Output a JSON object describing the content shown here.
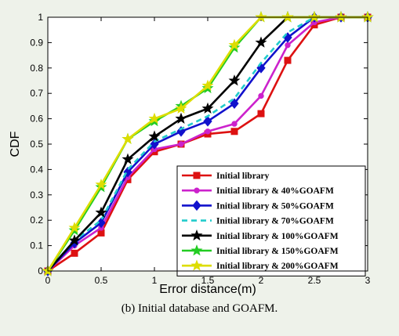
{
  "caption": "(b) Initial database and GOAFM.",
  "chart_data": {
    "type": "line",
    "xlabel": "Error distance(m)",
    "ylabel": "CDF",
    "xlim": [
      0,
      3
    ],
    "ylim": [
      0,
      1
    ],
    "x_ticks": [
      "0",
      "0.5",
      "1",
      "1.5",
      "2",
      "2.5",
      "3"
    ],
    "y_ticks": [
      "0",
      "0.1",
      "0.2",
      "0.3",
      "0.4",
      "0.5",
      "0.6",
      "0.7",
      "0.8",
      "0.9",
      "1"
    ],
    "grid": false,
    "legend_position": "bottom-right",
    "x": [
      0,
      0.25,
      0.5,
      0.75,
      1.0,
      1.25,
      1.5,
      1.75,
      2.0,
      2.25,
      2.5,
      2.75,
      3.0
    ],
    "series": [
      {
        "name": "Initial library",
        "color": "#dd1111",
        "marker": "square",
        "line_style": "solid",
        "values": [
          0,
          0.07,
          0.15,
          0.36,
          0.47,
          0.5,
          0.54,
          0.55,
          0.62,
          0.83,
          0.97,
          1.0,
          1.0
        ]
      },
      {
        "name": "Initial library & 40%GOAFM",
        "color": "#cc22cc",
        "marker": "circle",
        "line_style": "solid",
        "values": [
          0,
          0.1,
          0.17,
          0.37,
          0.48,
          0.5,
          0.55,
          0.58,
          0.69,
          0.89,
          0.98,
          1.0,
          1.0
        ]
      },
      {
        "name": "Initial library & 50%GOAFM",
        "color": "#1111cc",
        "marker": "diamond",
        "line_style": "solid",
        "values": [
          0,
          0.11,
          0.19,
          0.39,
          0.5,
          0.55,
          0.59,
          0.66,
          0.8,
          0.92,
          1.0,
          1.0,
          1.0
        ]
      },
      {
        "name": "Initial library & 70%GOAFM",
        "color": "#22cccc",
        "marker": "none",
        "line_style": "dashed",
        "values": [
          0,
          0.12,
          0.2,
          0.4,
          0.51,
          0.56,
          0.61,
          0.68,
          0.82,
          0.94,
          1.0,
          1.0,
          1.0
        ]
      },
      {
        "name": "Initial library & 100%GOAFM",
        "color": "#000000",
        "marker": "star",
        "line_style": "solid",
        "values": [
          0,
          0.12,
          0.23,
          0.44,
          0.53,
          0.6,
          0.64,
          0.75,
          0.9,
          1.0,
          1.0,
          1.0,
          1.0
        ]
      },
      {
        "name": "Initial library & 150%GOAFM",
        "color": "#22cc22",
        "marker": "star",
        "line_style": "solid",
        "values": [
          0,
          0.16,
          0.33,
          0.52,
          0.59,
          0.65,
          0.72,
          0.88,
          1.0,
          1.0,
          1.0,
          1.0,
          1.0
        ]
      },
      {
        "name": "Initial library & 200%GOAFM",
        "color": "#dddd00",
        "marker": "star",
        "line_style": "solid",
        "values": [
          0,
          0.17,
          0.34,
          0.52,
          0.6,
          0.64,
          0.73,
          0.89,
          1.0,
          1.0,
          1.0,
          1.0,
          1.0
        ]
      }
    ]
  }
}
